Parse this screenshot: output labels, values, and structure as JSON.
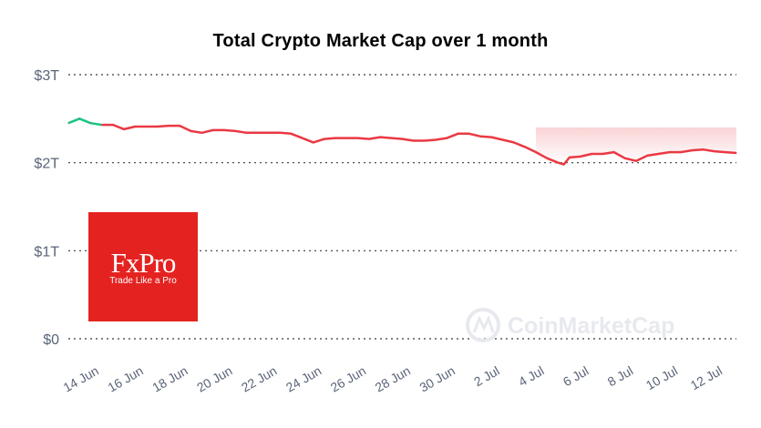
{
  "chart_data": {
    "type": "line",
    "title": "Total Crypto Market Cap over 1 month",
    "y_tick_labels": [
      "$0",
      "$1T",
      "$2T",
      "$3T"
    ],
    "y_ticks": [
      0,
      1,
      2,
      3
    ],
    "ylim": [
      0,
      3
    ],
    "y_unit": "trillion USD",
    "x_tick_labels": [
      "14 Jun",
      "16 Jun",
      "18 Jun",
      "20 Jun",
      "22 Jun",
      "24 Jun",
      "26 Jun",
      "28 Jun",
      "30 Jun",
      "2 Jul",
      "4 Jul",
      "6 Jul",
      "8 Jul",
      "10 Jul",
      "12 Jul"
    ],
    "x_ticks": [
      "2024-06-14",
      "2024-06-16",
      "2024-06-18",
      "2024-06-20",
      "2024-06-22",
      "2024-06-24",
      "2024-06-26",
      "2024-06-28",
      "2024-06-30",
      "2024-07-02",
      "2024-07-04",
      "2024-07-06",
      "2024-07-08",
      "2024-07-10",
      "2024-07-12"
    ],
    "xlim": [
      "2024-06-13",
      "2024-07-13"
    ],
    "grid": true,
    "legend": "none",
    "series": [
      {
        "color": "#ea3943",
        "x": [
          "2024-06-13",
          "2024-06-13 12:00",
          "2024-06-14",
          "2024-06-14 12:00",
          "2024-06-15",
          "2024-06-15 12:00",
          "2024-06-16",
          "2024-06-16 12:00",
          "2024-06-17",
          "2024-06-17 12:00",
          "2024-06-18",
          "2024-06-18 12:00",
          "2024-06-19",
          "2024-06-19 12:00",
          "2024-06-20",
          "2024-06-20 12:00",
          "2024-06-21",
          "2024-06-21 12:00",
          "2024-06-22",
          "2024-06-22 12:00",
          "2024-06-23",
          "2024-06-23 12:00",
          "2024-06-24",
          "2024-06-24 12:00",
          "2024-06-25",
          "2024-06-25 12:00",
          "2024-06-26",
          "2024-06-26 12:00",
          "2024-06-27",
          "2024-06-27 12:00",
          "2024-06-28",
          "2024-06-28 12:00",
          "2024-06-29",
          "2024-06-29 12:00",
          "2024-06-30",
          "2024-06-30 12:00",
          "2024-07-01",
          "2024-07-01 12:00",
          "2024-07-02",
          "2024-07-02 12:00",
          "2024-07-03",
          "2024-07-03 12:00",
          "2024-07-04",
          "2024-07-04 12:00",
          "2024-07-05",
          "2024-07-05 06:00",
          "2024-07-05 12:00",
          "2024-07-06",
          "2024-07-06 12:00",
          "2024-07-07",
          "2024-07-07 12:00",
          "2024-07-08",
          "2024-07-08 12:00",
          "2024-07-09",
          "2024-07-09 12:00",
          "2024-07-10",
          "2024-07-10 12:00",
          "2024-07-11",
          "2024-07-11 12:00",
          "2024-07-12",
          "2024-07-12 12:00",
          "2024-07-13"
        ],
        "y": [
          2.45,
          2.5,
          2.45,
          2.43,
          2.43,
          2.38,
          2.41,
          2.41,
          2.41,
          2.42,
          2.42,
          2.36,
          2.34,
          2.37,
          2.37,
          2.36,
          2.34,
          2.34,
          2.34,
          2.34,
          2.33,
          2.28,
          2.23,
          2.27,
          2.28,
          2.28,
          2.28,
          2.27,
          2.29,
          2.28,
          2.27,
          2.25,
          2.25,
          2.26,
          2.28,
          2.33,
          2.33,
          2.3,
          2.29,
          2.26,
          2.23,
          2.18,
          2.12,
          2.05,
          2.0,
          1.98,
          2.06,
          2.07,
          2.1,
          2.1,
          2.12,
          2.05,
          2.02,
          2.08,
          2.1,
          2.12,
          2.12,
          2.14,
          2.15,
          2.13,
          2.12,
          2.11
        ]
      }
    ]
  },
  "watermark": {
    "text": "CoinMarketCap"
  },
  "logo": {
    "brand": "FxPro",
    "tagline": "Trade Like a Pro"
  }
}
